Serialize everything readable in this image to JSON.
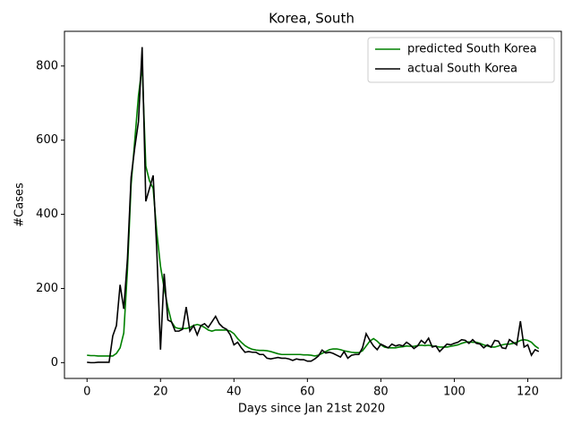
{
  "chart_data": {
    "type": "line",
    "title": "Korea, South",
    "xlabel": "Days since Jan 21st 2020",
    "ylabel": "#Cases",
    "x": [
      0,
      1,
      2,
      3,
      4,
      5,
      6,
      7,
      8,
      9,
      10,
      11,
      12,
      13,
      14,
      15,
      16,
      17,
      18,
      19,
      20,
      21,
      22,
      23,
      24,
      25,
      26,
      27,
      28,
      29,
      30,
      31,
      32,
      33,
      34,
      35,
      36,
      37,
      38,
      39,
      40,
      41,
      42,
      43,
      44,
      45,
      46,
      47,
      48,
      49,
      50,
      51,
      52,
      53,
      54,
      55,
      56,
      57,
      58,
      59,
      60,
      61,
      62,
      63,
      64,
      65,
      66,
      67,
      68,
      69,
      70,
      71,
      72,
      73,
      74,
      75,
      76,
      77,
      78,
      79,
      80,
      81,
      82,
      83,
      84,
      85,
      86,
      87,
      88,
      89,
      90,
      91,
      92,
      93,
      94,
      95,
      96,
      97,
      98,
      99,
      100,
      101,
      102,
      103,
      104,
      105,
      106,
      107,
      108,
      109,
      110,
      111,
      112,
      113,
      114,
      115,
      116,
      117,
      118,
      119,
      120,
      121,
      122,
      123
    ],
    "series": [
      {
        "name": "predicted South Korea",
        "color": "#008000",
        "values": [
          20,
          19,
          19,
          18,
          18,
          18,
          18,
          18,
          25,
          40,
          80,
          250,
          480,
          600,
          720,
          800,
          530,
          490,
          470,
          350,
          260,
          200,
          150,
          110,
          95,
          92,
          92,
          92,
          95,
          100,
          103,
          100,
          95,
          88,
          85,
          88,
          88,
          88,
          88,
          85,
          78,
          65,
          55,
          46,
          40,
          36,
          34,
          33,
          33,
          32,
          30,
          27,
          24,
          22,
          22,
          22,
          22,
          22,
          22,
          21,
          21,
          20,
          18,
          20,
          25,
          30,
          35,
          37,
          37,
          35,
          32,
          30,
          28,
          27,
          27,
          32,
          45,
          58,
          65,
          58,
          48,
          42,
          40,
          40,
          40,
          42,
          43,
          45,
          44,
          44,
          46,
          47,
          46,
          47,
          45,
          44,
          42,
          42,
          42,
          44,
          46,
          48,
          52,
          55,
          56,
          55,
          55,
          52,
          48,
          45,
          42,
          42,
          45,
          48,
          50,
          50,
          52,
          55,
          60,
          62,
          60,
          55,
          45,
          38
        ]
      },
      {
        "name": "actual South Korea",
        "color": "#000000",
        "values": [
          1,
          0,
          0,
          1,
          1,
          1,
          1,
          72,
          100,
          210,
          145,
          280,
          500,
          580,
          650,
          851,
          435,
          470,
          505,
          300,
          35,
          240,
          115,
          110,
          85,
          85,
          90,
          150,
          85,
          100,
          75,
          100,
          105,
          95,
          110,
          125,
          105,
          95,
          90,
          75,
          48,
          55,
          40,
          28,
          30,
          28,
          28,
          22,
          22,
          12,
          10,
          12,
          14,
          12,
          12,
          10,
          6,
          10,
          8,
          8,
          4,
          4,
          10,
          18,
          34,
          26,
          28,
          25,
          20,
          15,
          30,
          12,
          20,
          22,
          22,
          40,
          78,
          60,
          45,
          35,
          50,
          45,
          40,
          50,
          45,
          48,
          45,
          55,
          48,
          38,
          45,
          60,
          52,
          66,
          42,
          45,
          30,
          40,
          50,
          48,
          52,
          55,
          62,
          60,
          52,
          62,
          52,
          50,
          40,
          48,
          42,
          60,
          58,
          40,
          38,
          62,
          55,
          48,
          112,
          42,
          48,
          20,
          35,
          30
        ]
      }
    ],
    "xlim": [
      -6.15,
      129.15
    ],
    "ylim": [
      -42.55,
      893.55
    ],
    "xticks": [
      0,
      20,
      40,
      60,
      80,
      100,
      120
    ],
    "yticks": [
      0,
      200,
      400,
      600,
      800
    ],
    "legend": "upper right"
  }
}
